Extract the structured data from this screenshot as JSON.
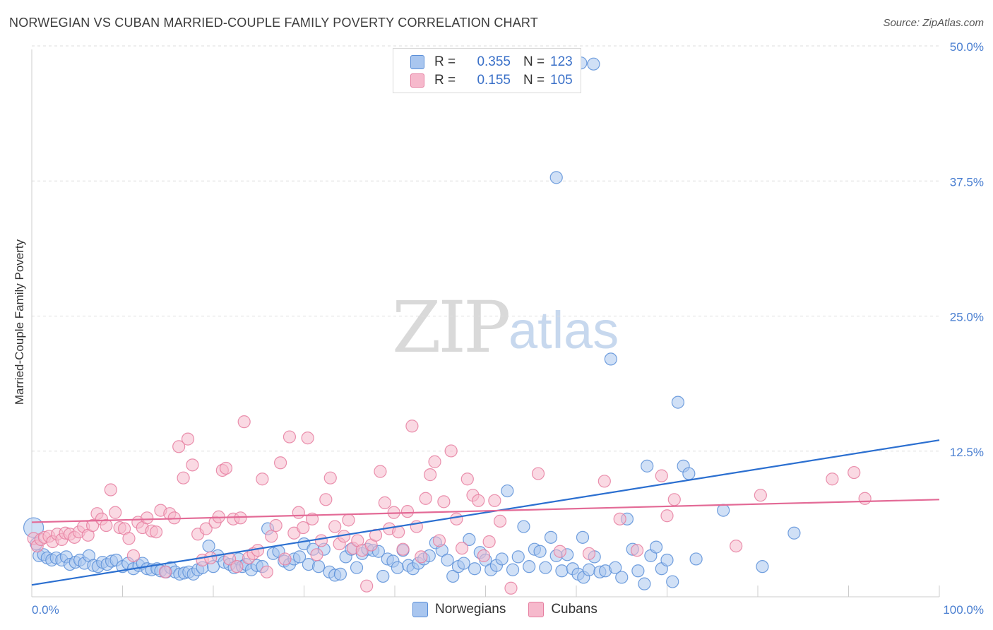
{
  "title": "NORWEGIAN VS CUBAN MARRIED-COUPLE FAMILY POVERTY CORRELATION CHART",
  "source": "Source: ZipAtlas.com",
  "watermark": {
    "zip": "ZIP",
    "atlas": "atlas"
  },
  "legend": {
    "rows": [
      {
        "r_label": "R =",
        "r_value": "0.355",
        "n_label": "N =",
        "n_value": "123"
      },
      {
        "r_label": "R =",
        "r_value": "0.155",
        "n_label": "N =",
        "n_value": "105"
      }
    ]
  },
  "bottom_legend": {
    "items": [
      "Norwegians",
      "Cubans"
    ]
  },
  "colors": {
    "norwegian_fill": "#a9c6ef",
    "norwegian_stroke": "#5b8fd8",
    "norwegian_line": "#2b6fd0",
    "cuban_fill": "#f6b9cc",
    "cuban_stroke": "#e67ea0",
    "cuban_line": "#e36a96",
    "tick": "#4a7fd1",
    "grid": "#dddddd"
  },
  "chart_data": {
    "type": "scatter",
    "title": "NORWEGIAN VS CUBAN MARRIED-COUPLE FAMILY POVERTY CORRELATION CHART",
    "xlabel": "",
    "ylabel": "Married-Couple Family Poverty",
    "xlim": [
      0,
      100
    ],
    "ylim": [
      0,
      52
    ],
    "y_ticks": [
      12.5,
      25.0,
      37.5,
      50.0
    ],
    "y_tick_labels": [
      "12.5%",
      "25.0%",
      "37.5%",
      "50.0%"
    ],
    "x_tick_labels": [
      "0.0%",
      "100.0%"
    ],
    "grid": true,
    "series": [
      {
        "name": "Norwegians",
        "r": 0.355,
        "n": 123,
        "trend": [
          [
            0,
            1.1
          ],
          [
            100,
            14.5
          ]
        ],
        "points": [
          [
            0.2,
            6.4
          ],
          [
            0.5,
            4.9
          ],
          [
            0.8,
            3.8
          ],
          [
            1.3,
            3.9
          ],
          [
            1.7,
            3.6
          ],
          [
            2.2,
            3.4
          ],
          [
            2.7,
            3.6
          ],
          [
            3.3,
            3.4
          ],
          [
            3.8,
            3.7
          ],
          [
            4.2,
            3.0
          ],
          [
            4.8,
            3.2
          ],
          [
            5.3,
            3.4
          ],
          [
            5.8,
            3.1
          ],
          [
            6.3,
            3.8
          ],
          [
            6.8,
            2.9
          ],
          [
            7.3,
            2.8
          ],
          [
            7.8,
            3.2
          ],
          [
            8.3,
            3.0
          ],
          [
            8.8,
            3.3
          ],
          [
            9.3,
            3.4
          ],
          [
            10.0,
            2.8
          ],
          [
            10.6,
            3.1
          ],
          [
            11.2,
            2.6
          ],
          [
            11.8,
            2.9
          ],
          [
            12.2,
            3.1
          ],
          [
            12.7,
            2.6
          ],
          [
            13.2,
            2.5
          ],
          [
            13.8,
            2.6
          ],
          [
            14.2,
            2.4
          ],
          [
            14.8,
            2.3
          ],
          [
            15.3,
            2.7
          ],
          [
            15.8,
            2.3
          ],
          [
            16.3,
            2.1
          ],
          [
            16.8,
            2.2
          ],
          [
            17.3,
            2.3
          ],
          [
            17.8,
            2.1
          ],
          [
            18.3,
            2.5
          ],
          [
            18.8,
            2.7
          ],
          [
            19.5,
            4.7
          ],
          [
            20.0,
            2.8
          ],
          [
            20.5,
            3.8
          ],
          [
            21.2,
            3.2
          ],
          [
            21.8,
            3.0
          ],
          [
            22.3,
            2.7
          ],
          [
            22.8,
            3.5
          ],
          [
            23.2,
            2.8
          ],
          [
            23.6,
            3.0
          ],
          [
            24.2,
            2.5
          ],
          [
            24.8,
            2.9
          ],
          [
            25.4,
            2.8
          ],
          [
            26.0,
            6.3
          ],
          [
            26.6,
            4.0
          ],
          [
            27.2,
            4.2
          ],
          [
            27.8,
            3.3
          ],
          [
            28.4,
            3.0
          ],
          [
            28.9,
            3.5
          ],
          [
            29.5,
            3.7
          ],
          [
            30.0,
            4.9
          ],
          [
            30.5,
            3.0
          ],
          [
            31.0,
            4.4
          ],
          [
            31.6,
            2.8
          ],
          [
            32.2,
            4.4
          ],
          [
            32.8,
            2.3
          ],
          [
            33.4,
            2.0
          ],
          [
            34.0,
            2.1
          ],
          [
            34.6,
            3.7
          ],
          [
            35.2,
            4.4
          ],
          [
            35.8,
            2.7
          ],
          [
            36.4,
            4.0
          ],
          [
            37.0,
            4.4
          ],
          [
            37.6,
            4.3
          ],
          [
            38.2,
            4.2
          ],
          [
            38.7,
            1.9
          ],
          [
            39.2,
            3.5
          ],
          [
            39.8,
            3.3
          ],
          [
            40.3,
            2.7
          ],
          [
            40.9,
            4.3
          ],
          [
            41.5,
            2.9
          ],
          [
            42.0,
            2.6
          ],
          [
            42.6,
            3.1
          ],
          [
            43.2,
            3.5
          ],
          [
            43.8,
            3.8
          ],
          [
            44.5,
            5.0
          ],
          [
            45.2,
            4.3
          ],
          [
            45.8,
            3.4
          ],
          [
            46.4,
            1.9
          ],
          [
            47.0,
            2.8
          ],
          [
            47.6,
            3.1
          ],
          [
            48.2,
            5.3
          ],
          [
            48.8,
            2.6
          ],
          [
            49.4,
            4.1
          ],
          [
            50.0,
            3.4
          ],
          [
            50.6,
            2.5
          ],
          [
            51.2,
            2.9
          ],
          [
            51.8,
            3.5
          ],
          [
            52.4,
            9.8
          ],
          [
            53.0,
            2.5
          ],
          [
            53.6,
            3.7
          ],
          [
            54.2,
            6.5
          ],
          [
            54.8,
            2.8
          ],
          [
            55.4,
            4.4
          ],
          [
            56.0,
            4.2
          ],
          [
            56.6,
            2.7
          ],
          [
            57.2,
            5.5
          ],
          [
            57.8,
            3.8
          ],
          [
            58.4,
            2.4
          ],
          [
            59.0,
            3.9
          ],
          [
            59.6,
            2.6
          ],
          [
            60.2,
            2.1
          ],
          [
            60.8,
            1.8
          ],
          [
            61.4,
            2.5
          ],
          [
            62.0,
            3.7
          ],
          [
            62.6,
            2.3
          ],
          [
            63.2,
            2.4
          ],
          [
            63.8,
            22.0
          ],
          [
            64.3,
            2.7
          ],
          [
            65.0,
            1.8
          ],
          [
            65.6,
            7.2
          ],
          [
            66.2,
            4.4
          ],
          [
            66.8,
            2.4
          ],
          [
            67.5,
            1.2
          ],
          [
            68.2,
            3.8
          ],
          [
            68.8,
            4.6
          ],
          [
            69.4,
            2.6
          ],
          [
            70.0,
            3.4
          ],
          [
            70.6,
            1.4
          ],
          [
            71.2,
            18.0
          ],
          [
            71.8,
            12.1
          ],
          [
            72.4,
            11.4
          ],
          [
            73.2,
            3.5
          ]
        ],
        "outliers": [
          [
            60.5,
            49.4
          ],
          [
            61.9,
            49.3
          ],
          [
            57.8,
            38.8
          ],
          [
            60.7,
            5.5
          ],
          [
            67.8,
            12.1
          ],
          [
            76.2,
            8.0
          ],
          [
            80.5,
            2.8
          ],
          [
            84.0,
            5.9
          ]
        ]
      },
      {
        "name": "Cubans",
        "r": 0.155,
        "n": 105,
        "trend": [
          [
            0,
            6.9
          ],
          [
            100,
            9.0
          ]
        ],
        "points": [
          [
            0.2,
            5.4
          ],
          [
            0.6,
            4.7
          ],
          [
            1.0,
            5.3
          ],
          [
            1.4,
            5.5
          ],
          [
            1.9,
            5.6
          ],
          [
            2.3,
            5.1
          ],
          [
            2.8,
            5.8
          ],
          [
            3.3,
            5.3
          ],
          [
            3.7,
            5.9
          ],
          [
            4.2,
            5.8
          ],
          [
            4.7,
            5.5
          ],
          [
            5.2,
            6.0
          ],
          [
            5.7,
            6.5
          ],
          [
            6.2,
            5.7
          ],
          [
            6.7,
            6.6
          ],
          [
            7.2,
            7.7
          ],
          [
            7.7,
            7.2
          ],
          [
            8.2,
            6.6
          ],
          [
            8.7,
            9.9
          ],
          [
            9.2,
            7.8
          ],
          [
            9.7,
            6.4
          ],
          [
            10.2,
            6.3
          ],
          [
            10.7,
            5.4
          ],
          [
            11.2,
            3.8
          ],
          [
            11.7,
            6.9
          ],
          [
            12.2,
            6.4
          ],
          [
            12.7,
            7.3
          ],
          [
            13.2,
            6.1
          ],
          [
            13.7,
            6.0
          ],
          [
            14.2,
            8.0
          ],
          [
            14.7,
            2.3
          ],
          [
            15.2,
            7.7
          ],
          [
            15.7,
            7.3
          ],
          [
            16.2,
            13.9
          ],
          [
            16.7,
            11.0
          ],
          [
            17.2,
            14.6
          ],
          [
            17.7,
            12.2
          ],
          [
            18.3,
            5.8
          ],
          [
            18.8,
            3.4
          ],
          [
            19.2,
            6.3
          ],
          [
            19.7,
            3.6
          ],
          [
            20.2,
            6.9
          ],
          [
            20.6,
            7.4
          ],
          [
            21.0,
            11.7
          ],
          [
            21.4,
            11.9
          ],
          [
            21.8,
            3.5
          ],
          [
            22.2,
            7.2
          ],
          [
            22.6,
            2.8
          ],
          [
            23.0,
            7.3
          ],
          [
            23.4,
            16.2
          ],
          [
            23.9,
            3.6
          ],
          [
            24.4,
            4.0
          ],
          [
            24.9,
            4.3
          ],
          [
            25.4,
            10.9
          ],
          [
            25.9,
            2.3
          ],
          [
            26.4,
            5.6
          ],
          [
            26.9,
            6.6
          ],
          [
            27.4,
            12.4
          ],
          [
            27.9,
            3.5
          ],
          [
            28.4,
            14.8
          ],
          [
            28.9,
            5.9
          ],
          [
            29.4,
            7.8
          ],
          [
            29.9,
            6.4
          ],
          [
            30.4,
            14.7
          ],
          [
            30.9,
            7.2
          ],
          [
            31.4,
            3.9
          ],
          [
            31.9,
            5.2
          ],
          [
            32.4,
            9.0
          ],
          [
            32.9,
            11.0
          ],
          [
            33.4,
            6.5
          ],
          [
            33.9,
            4.9
          ],
          [
            34.4,
            5.6
          ],
          [
            34.9,
            7.1
          ],
          [
            35.4,
            4.5
          ],
          [
            35.9,
            5.2
          ],
          [
            36.4,
            4.3
          ],
          [
            36.9,
            1.0
          ],
          [
            37.4,
            4.8
          ],
          [
            37.9,
            5.7
          ],
          [
            38.4,
            11.6
          ],
          [
            38.9,
            8.7
          ],
          [
            39.4,
            6.3
          ],
          [
            39.9,
            7.8
          ],
          [
            40.4,
            6.0
          ],
          [
            40.9,
            4.4
          ],
          [
            41.4,
            7.9
          ],
          [
            41.9,
            15.8
          ],
          [
            42.4,
            6.5
          ],
          [
            42.9,
            3.7
          ],
          [
            43.4,
            9.1
          ],
          [
            43.9,
            11.3
          ],
          [
            44.4,
            12.5
          ],
          [
            44.9,
            5.2
          ],
          [
            45.4,
            8.8
          ],
          [
            46.2,
            13.5
          ],
          [
            46.8,
            7.2
          ],
          [
            47.4,
            4.5
          ],
          [
            48.0,
            10.9
          ],
          [
            48.6,
            9.4
          ],
          [
            49.2,
            8.9
          ],
          [
            49.8,
            3.8
          ],
          [
            50.4,
            5.1
          ],
          [
            51.0,
            8.9
          ],
          [
            51.6,
            7.0
          ]
        ],
        "outliers": [
          [
            52.8,
            0.8
          ],
          [
            55.8,
            11.4
          ],
          [
            58.2,
            4.2
          ],
          [
            61.4,
            4.0
          ],
          [
            63.1,
            10.7
          ],
          [
            64.8,
            7.2
          ],
          [
            66.7,
            4.3
          ],
          [
            69.4,
            11.2
          ],
          [
            70.0,
            7.5
          ],
          [
            70.8,
            9.0
          ],
          [
            77.6,
            4.7
          ],
          [
            80.3,
            9.4
          ],
          [
            88.2,
            10.9
          ],
          [
            90.6,
            11.5
          ],
          [
            91.8,
            9.1
          ]
        ]
      }
    ]
  }
}
